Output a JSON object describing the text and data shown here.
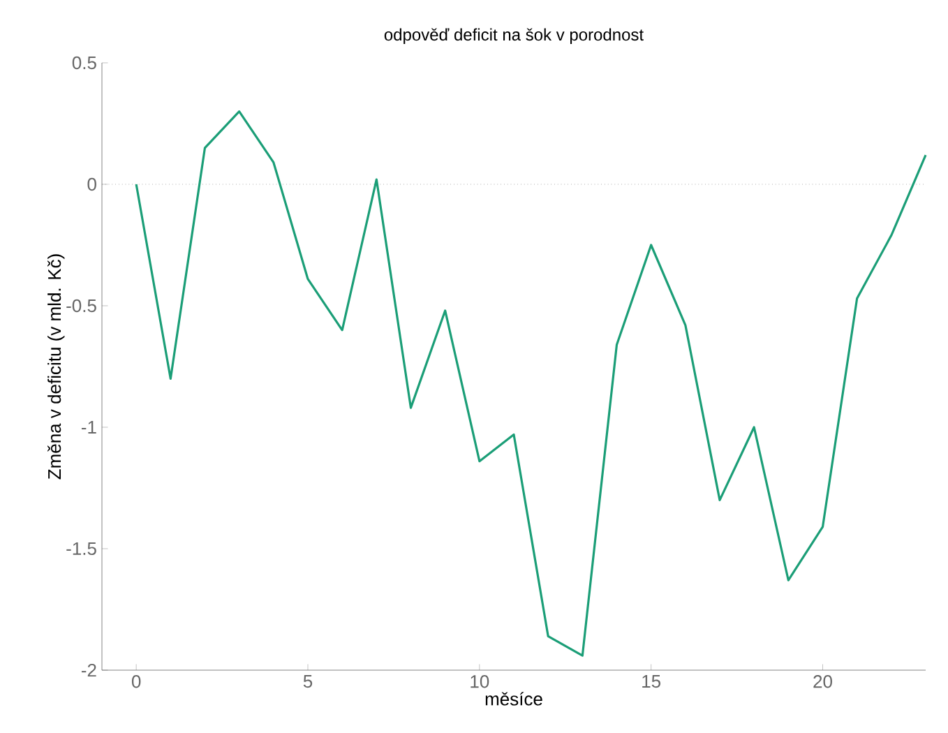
{
  "chart_data": {
    "type": "line",
    "title": "odpověď deficit na šok v porodnost",
    "xlabel": "měsíce",
    "ylabel": "Změna v deficitu (v mld. Kč)",
    "x": [
      0,
      1,
      2,
      3,
      4,
      5,
      6,
      7,
      8,
      9,
      10,
      11,
      12,
      13,
      14,
      15,
      16,
      17,
      18,
      19,
      20,
      21,
      22,
      23
    ],
    "series": [
      {
        "color": "#1b9e77",
        "values": [
          0,
          -0.8,
          0.15,
          0.3,
          0.09,
          -0.39,
          -0.6,
          0.02,
          -0.92,
          -0.52,
          -1.14,
          -1.03,
          -1.86,
          -1.94,
          -0.66,
          -0.25,
          -0.58,
          -1.3,
          -1.0,
          -1.63,
          -1.41,
          -0.47,
          -0.21,
          0.12
        ]
      }
    ],
    "xlim": [
      -1,
      23
    ],
    "ylim": [
      -2,
      0.5
    ],
    "xticks": [
      0,
      5,
      10,
      15,
      20
    ],
    "yticks": [
      -2,
      -1.5,
      -1,
      -0.5,
      0,
      0.5
    ],
    "ref_lines": [
      {
        "axis": "y",
        "value": 0,
        "line_style": "dotted"
      }
    ],
    "marker": "none",
    "line_style": "solid"
  }
}
